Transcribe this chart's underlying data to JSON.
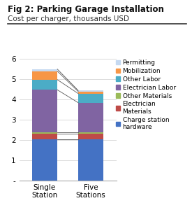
{
  "title": "Fig 2: Parking Garage Installation",
  "subtitle": "Cost per charger, thousands USD",
  "categories": [
    "Single\nStation",
    "Five\nStations"
  ],
  "segments": [
    {
      "label": "Charge station\nhardware",
      "color": "#4472C4",
      "values": [
        2.02,
        2.02
      ]
    },
    {
      "label": "Electrician\nMaterials",
      "color": "#BE4B48",
      "values": [
        0.3,
        0.3
      ]
    },
    {
      "label": "Other Materials",
      "color": "#9BBB59",
      "values": [
        0.07,
        0.07
      ]
    },
    {
      "label": "Electrician Labor",
      "color": "#8064A2",
      "values": [
        2.08,
        1.45
      ]
    },
    {
      "label": "Other Labor",
      "color": "#4BACC6",
      "values": [
        0.5,
        0.45
      ]
    },
    {
      "label": "Mobilization",
      "color": "#F79646",
      "values": [
        0.42,
        0.1
      ]
    },
    {
      "label": "Permitting",
      "color": "#C5D9F1",
      "values": [
        0.1,
        0.05
      ]
    }
  ],
  "ylim": [
    0,
    6
  ],
  "yticks": [
    0,
    1,
    2,
    3,
    4,
    5,
    6
  ],
  "ytick_labels": [
    "-",
    "1",
    "2",
    "3",
    "4",
    "5",
    "6"
  ],
  "bg_color": "#FFFFFF",
  "title_fontsize": 8.5,
  "subtitle_fontsize": 7.5,
  "legend_fontsize": 6.5,
  "tick_fontsize": 7.5,
  "bar_width": 0.55
}
